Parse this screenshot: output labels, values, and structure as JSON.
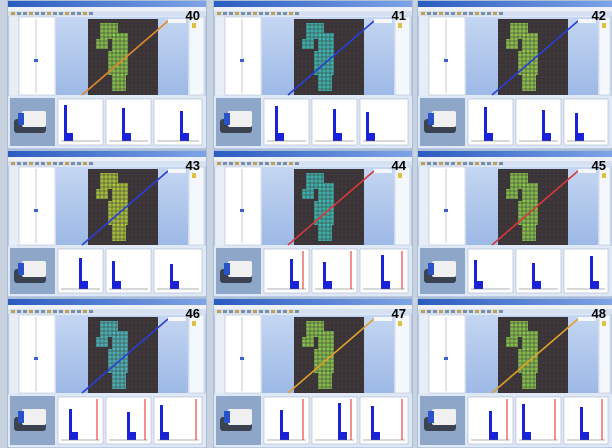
{
  "panels": [
    {
      "label": "40"
    },
    {
      "label": "41"
    },
    {
      "label": "42"
    },
    {
      "label": "43"
    },
    {
      "label": "44"
    },
    {
      "label": "45"
    },
    {
      "label": "46"
    },
    {
      "label": "47"
    },
    {
      "label": "48"
    }
  ]
}
